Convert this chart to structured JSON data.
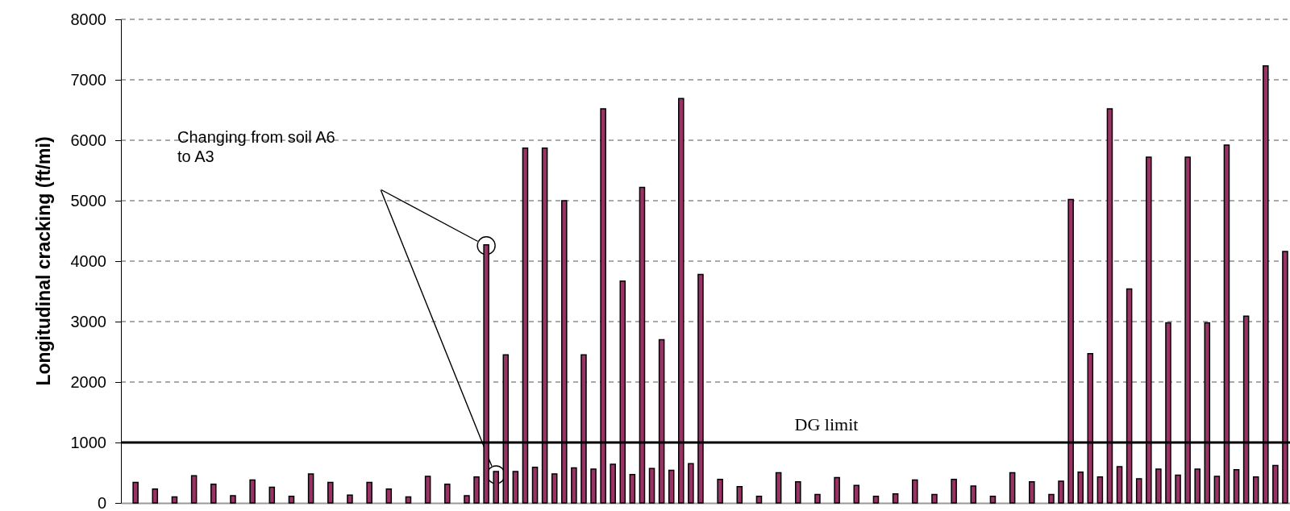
{
  "chart_data": {
    "type": "bar",
    "ylabel": "Longitudinal cracking (ft/mi)",
    "categories": [
      null,
      null,
      null,
      null,
      null,
      null,
      null,
      null,
      null,
      null,
      null,
      null,
      null,
      null,
      null,
      null,
      null,
      null,
      null,
      null,
      null,
      null,
      null,
      null,
      null,
      null,
      null,
      null,
      null,
      null,
      null,
      null,
      null,
      null,
      null,
      null,
      null,
      null,
      null,
      null,
      null,
      null,
      null,
      null,
      null,
      null,
      null,
      null,
      null,
      null,
      null,
      null,
      null,
      null,
      null,
      null,
      null,
      null,
      null,
      null,
      null,
      null,
      null,
      null,
      null,
      null,
      null,
      null,
      null,
      null,
      null,
      null,
      null,
      null,
      null,
      null,
      null,
      null,
      null,
      null,
      null,
      null,
      null,
      null,
      null,
      null,
      null,
      null,
      null,
      null,
      null,
      null,
      null,
      null,
      null,
      null,
      null,
      null,
      null,
      null,
      null,
      null,
      null,
      null,
      null,
      null,
      null,
      null,
      null,
      null,
      null,
      null,
      null,
      null,
      null,
      null,
      null,
      null,
      null,
      null
    ],
    "values": [
      0,
      340,
      0,
      230,
      0,
      100,
      0,
      450,
      0,
      310,
      0,
      120,
      0,
      380,
      0,
      260,
      0,
      110,
      0,
      480,
      0,
      340,
      0,
      130,
      0,
      340,
      0,
      230,
      0,
      100,
      0,
      440,
      0,
      310,
      0,
      120,
      430,
      4270,
      520,
      2450,
      520,
      5870,
      590,
      5870,
      480,
      5000,
      580,
      2450,
      560,
      6520,
      640,
      3670,
      470,
      5220,
      570,
      2700,
      540,
      6690,
      650,
      3780,
      0,
      390,
      0,
      270,
      0,
      110,
      0,
      500,
      0,
      350,
      0,
      140,
      0,
      420,
      0,
      290,
      0,
      110,
      0,
      150,
      0,
      380,
      0,
      140,
      0,
      390,
      0,
      280,
      0,
      110,
      0,
      500,
      0,
      350,
      0,
      140,
      360,
      5020,
      510,
      2470,
      430,
      6520,
      600,
      3540,
      400,
      5720,
      560,
      2980,
      460,
      5720,
      560,
      2980,
      440,
      5920,
      550,
      3090,
      430,
      7230,
      620,
      4160
    ],
    "color": "#993366",
    "ylim": [
      0,
      8000
    ],
    "yticks": [
      0,
      1000,
      2000,
      3000,
      4000,
      5000,
      6000,
      7000,
      8000
    ],
    "grid": "y",
    "tick_labels": "y",
    "ref_lines": [
      {
        "axis": "y",
        "value": 1000,
        "label": "DG limit",
        "color": "#000000"
      }
    ],
    "annotations": [
      "Changing from soil A6 to A3"
    ]
  }
}
